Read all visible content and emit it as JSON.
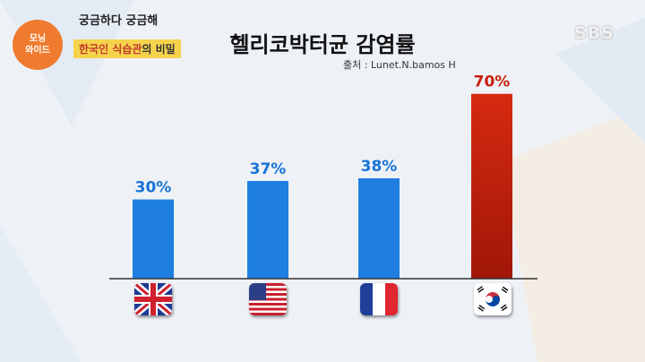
{
  "show": {
    "logo_line1": "모닝",
    "logo_line2": "와이드",
    "title": "궁금하다 궁금해",
    "subtitle_highlight": "한국인 식습관",
    "subtitle_rest": "의 비밀"
  },
  "broadcaster": "SBS",
  "chart_data": {
    "type": "bar",
    "title": "헬리코박터균 감염률",
    "source": "출처 : Lunet.N.bamos H",
    "categories": [
      "uk-flag-icon",
      "us-flag-icon",
      "france-flag-icon",
      "korea-flag-icon"
    ],
    "values": [
      30,
      37,
      38,
      70
    ],
    "value_labels": [
      "30%",
      "37%",
      "38%",
      "70%"
    ],
    "ylim": [
      0,
      75
    ],
    "colors": [
      "#1e7fe0",
      "#1e7fe0",
      "#1e7fe0",
      "#d62a10"
    ],
    "grid": false
  }
}
